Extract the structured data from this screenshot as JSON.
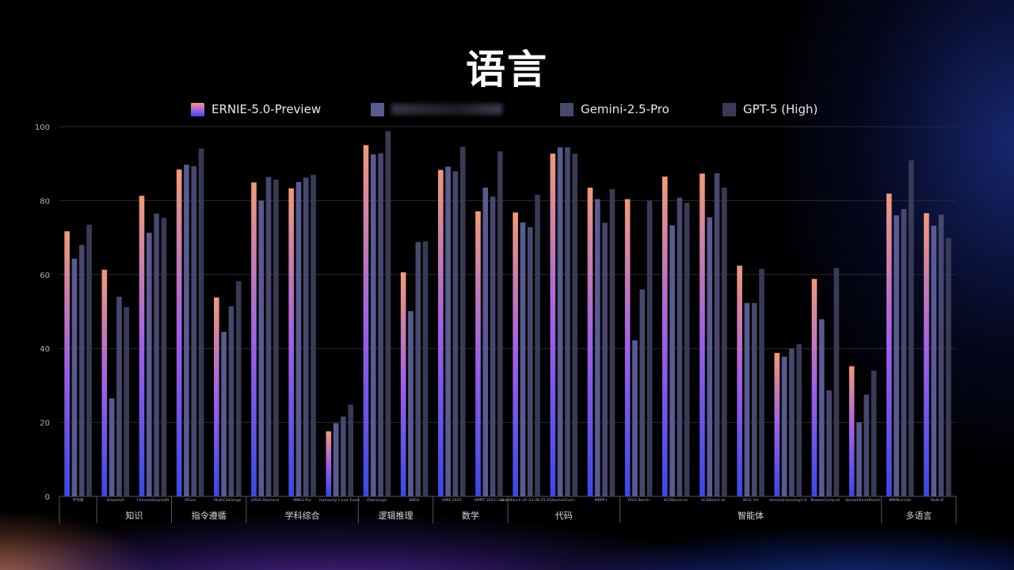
{
  "header": {
    "title": "语言"
  },
  "colors": {
    "ernie_top": "#f29a78",
    "ernie_mid": "#a060e8",
    "ernie_bottom": "#3a48e8",
    "series2": "#5a5a92",
    "series3": "#48486e",
    "series4": "#3a3a56",
    "grid": "#2a2a32",
    "axis_text": "#b0b0b8"
  },
  "chart_data": {
    "type": "bar",
    "ylim": [
      0,
      100
    ],
    "yticks": [
      "0",
      "20",
      "40",
      "60",
      "80",
      "100"
    ],
    "series": [
      {
        "name": "ERNIE-5.0-Preview",
        "color": "gradient"
      },
      {
        "name": "",
        "color": "#5a5a92"
      },
      {
        "name": "Gemini-2.5-Pro",
        "color": "#48486e"
      },
      {
        "name": "GPT-5 (High)",
        "color": "#3a3a56"
      }
    ],
    "categories": [
      "平均值",
      "SimpleQA",
      "ChineseSimpleQA",
      "IFEval",
      "MultiChallenge",
      "GPQA-Diamond",
      "MMLU-Pro",
      "Humanity's Last Exam",
      "ZebraLogic",
      "BBEH",
      "AIME 2025",
      "HMMT 2025 Live",
      "CodeBench v6 (24.08-25.05)",
      "HumanEval+",
      "MBPP+",
      "TAU2 Bench",
      "ACEBench-en",
      "ACEBench-zh",
      "BFCL V4",
      "terminal-bench@1.0",
      "BrowseComp-zh",
      "SpreadSheetBench",
      "MMMLU-Lite",
      "Multi-IF"
    ],
    "values": [
      [
        71.7,
        64.3,
        68.0,
        73.5
      ],
      [
        61.3,
        26.5,
        54.0,
        51.2
      ],
      [
        81.3,
        71.3,
        76.5,
        75.3
      ],
      [
        88.4,
        89.7,
        89.3,
        94.1
      ],
      [
        53.8,
        44.5,
        51.4,
        58.2
      ],
      [
        84.9,
        80.0,
        86.4,
        85.7
      ],
      [
        83.3,
        85.0,
        86.2,
        87.0
      ],
      [
        17.6,
        19.8,
        21.6,
        24.8
      ],
      [
        95.0,
        92.5,
        92.8,
        98.8
      ],
      [
        60.6,
        50.1,
        68.8,
        69.0
      ],
      [
        88.3,
        89.2,
        87.9,
        94.6
      ],
      [
        77.1,
        83.5,
        81.1,
        93.3
      ],
      [
        76.8,
        74.1,
        72.8,
        81.6
      ],
      [
        92.7,
        94.4,
        94.4,
        92.7
      ],
      [
        83.5,
        80.4,
        74.0,
        83.1
      ],
      [
        80.4,
        42.2,
        56.0,
        80.0
      ],
      [
        86.5,
        73.3,
        80.8,
        79.4
      ],
      [
        87.3,
        75.5,
        87.4,
        83.5
      ],
      [
        62.4,
        52.3,
        52.3,
        61.5
      ],
      [
        38.8,
        37.8,
        40.0,
        41.2
      ],
      [
        58.8,
        47.9,
        28.7,
        61.8
      ],
      [
        35.2,
        20.0,
        27.5,
        34.0
      ],
      [
        81.9,
        76.0,
        77.7,
        90.9
      ],
      [
        76.6,
        73.2,
        76.2,
        69.9
      ]
    ],
    "groups": [
      {
        "label": "",
        "count": 1
      },
      {
        "label": "知识",
        "count": 2
      },
      {
        "label": "指令遵循",
        "count": 2
      },
      {
        "label": "学科综合",
        "count": 3
      },
      {
        "label": "逻辑推理",
        "count": 2
      },
      {
        "label": "数学",
        "count": 2
      },
      {
        "label": "代码",
        "count": 3
      },
      {
        "label": "智能体",
        "count": 7
      },
      {
        "label": "多语言",
        "count": 2
      }
    ]
  }
}
